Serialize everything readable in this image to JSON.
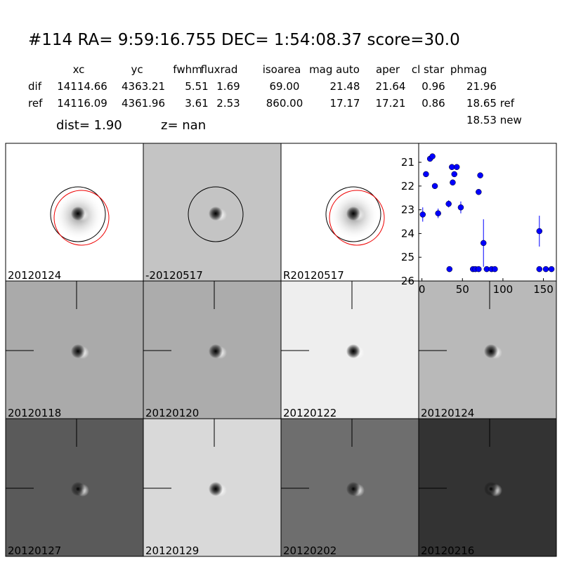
{
  "header": {
    "title": "#114   RA= 9:59:16.755 DEC= 1:54:08.37       score=30.0"
  },
  "table": {
    "columns": [
      "xc",
      "yc",
      "fwhm",
      "fluxrad",
      "isoarea",
      "mag auto",
      "aper",
      "cl star",
      "phmag"
    ],
    "rows": [
      [
        "dif",
        "14114.66",
        "4363.21",
        "5.51",
        "1.69",
        "69.00",
        "21.48",
        "21.64",
        "0.96",
        "21.96"
      ],
      [
        "ref",
        "14116.09",
        "4361.96",
        "3.61",
        "2.53",
        "860.00",
        "17.17",
        "17.21",
        "0.86",
        "18.65 ref"
      ]
    ],
    "extra": "18.53 new",
    "dist": "dist=  1.90",
    "z": "z=   nan"
  },
  "panels": [
    "20120124",
    "-20120517",
    "R20120517",
    "20120118",
    "20120120",
    "20120122",
    "20120124",
    "20120127",
    "20120129",
    "20120202",
    "20120216"
  ],
  "chart_data": {
    "type": "scatter",
    "color": "#0000ff",
    "x": [
      1,
      5,
      10,
      13,
      16,
      20,
      33,
      34,
      37,
      38,
      40,
      43,
      48,
      63,
      66,
      70,
      70,
      72,
      76,
      80,
      86,
      90,
      145,
      145,
      153,
      160
    ],
    "values": [
      23.2,
      21.5,
      20.85,
      20.75,
      22.0,
      23.15,
      22.75,
      25.5,
      21.2,
      21.85,
      21.5,
      21.2,
      22.9,
      25.5,
      25.5,
      25.5,
      22.25,
      21.55,
      24.4,
      25.5,
      25.5,
      25.5,
      23.9,
      25.5,
      25.5,
      25.5
    ],
    "errors": [
      0.3,
      0.05,
      0.05,
      0.05,
      0.08,
      0.2,
      0.15,
      0.05,
      0.05,
      0.05,
      0.05,
      0.05,
      0.25,
      0.05,
      0.05,
      0.05,
      0.1,
      0.05,
      1.0,
      0.05,
      0.05,
      0.05,
      0.65,
      0.05,
      0.05,
      0.05
    ],
    "xlim": [
      -4,
      166
    ],
    "ylim": [
      26,
      20.2
    ],
    "xticks": [
      0,
      50,
      100,
      150
    ],
    "yticks": [
      21,
      22,
      23,
      24,
      25,
      26
    ]
  }
}
